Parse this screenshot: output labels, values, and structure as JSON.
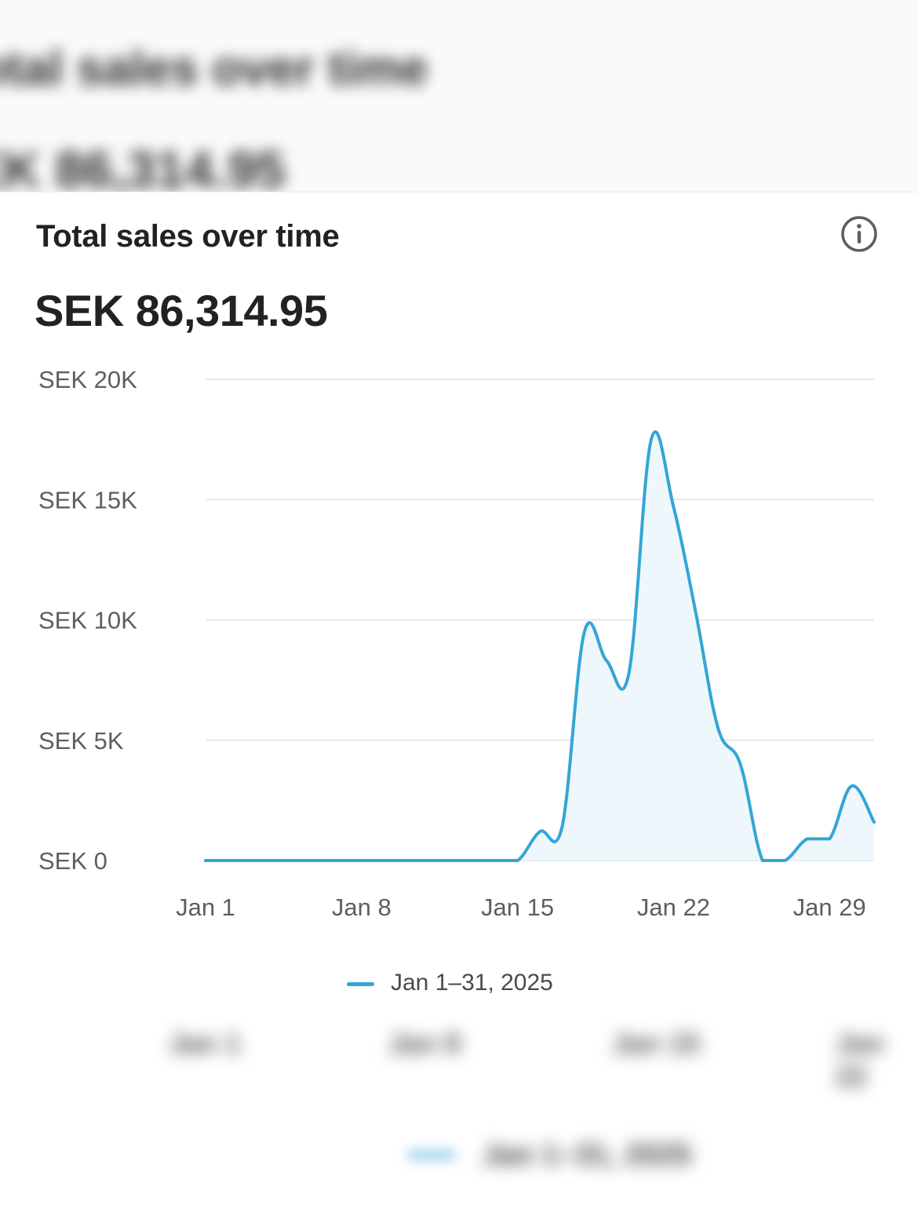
{
  "card": {
    "title": "Total sales over time",
    "total": "SEK 86,314.95",
    "info_icon": "info-circle-icon"
  },
  "background": {
    "title": "otal sales over time",
    "total": "EK 86,314.95",
    "ghost_ticks": [
      "Jan 1",
      "Jan 8",
      "Jan 15",
      "Jan 22"
    ],
    "ghost_legend": "Jan 1–31, 2025"
  },
  "colors": {
    "line": "#33a6d6",
    "area": "#eaf6fb",
    "grid": "#e6e7e8",
    "axis_text": "#5c5f62"
  },
  "chart_data": {
    "type": "line",
    "y_tick_labels": [
      "SEK 0",
      "SEK 5K",
      "SEK 10K",
      "SEK 15K",
      "SEK 20K"
    ],
    "y_ticks": [
      0,
      5000,
      10000,
      15000,
      20000
    ],
    "ylim": [
      0,
      20000
    ],
    "x_tick_labels": [
      "Jan 1",
      "Jan 8",
      "Jan 15",
      "Jan 22",
      "Jan 29"
    ],
    "x_ticks": [
      1,
      8,
      15,
      22,
      29
    ],
    "xlim": [
      1,
      31
    ],
    "grid": true,
    "legend_position": "bottom-center",
    "series": [
      {
        "name": "Jan 1–31, 2025",
        "x": [
          1,
          2,
          3,
          4,
          5,
          6,
          7,
          8,
          9,
          10,
          11,
          12,
          13,
          14,
          15,
          16,
          17,
          18,
          19,
          20,
          21,
          22,
          23,
          24,
          25,
          26,
          27,
          28,
          29,
          30,
          31
        ],
        "values": [
          0,
          0,
          0,
          0,
          0,
          0,
          0,
          0,
          0,
          0,
          0,
          0,
          0,
          0,
          0,
          1200,
          1400,
          9500,
          8300,
          7800,
          17500,
          14700,
          10300,
          5500,
          4000,
          0,
          0,
          900,
          900,
          3100,
          1600
        ]
      }
    ]
  }
}
